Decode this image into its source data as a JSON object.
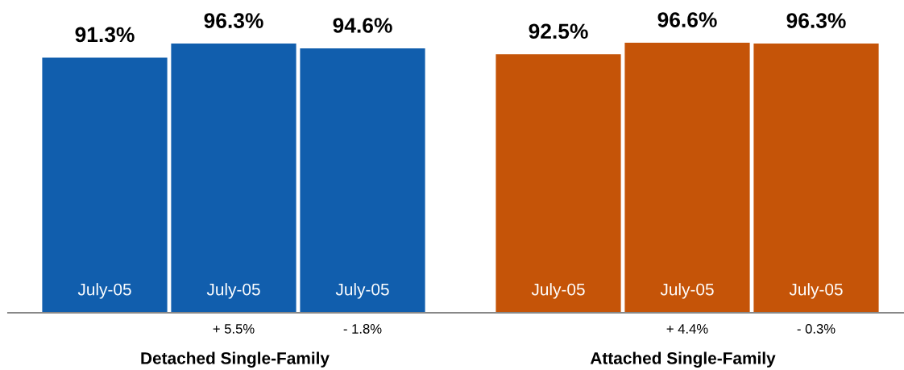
{
  "chart_data": [
    {
      "type": "bar",
      "categories": [
        "July-05",
        "July-05",
        "July-05"
      ],
      "values": [
        91.3,
        96.3,
        94.6
      ],
      "value_labels": [
        "91.3%",
        "96.3%",
        "94.6%"
      ],
      "color": "#115ead",
      "xlabel": "Detached Single-Family",
      "annotations": [
        "+ 5.5%",
        "- 1.8%"
      ],
      "grid": false,
      "legend": false
    },
    {
      "type": "bar",
      "categories": [
        "July-05",
        "July-05",
        "July-05"
      ],
      "values": [
        92.5,
        96.6,
        96.3
      ],
      "value_labels": [
        "92.5%",
        "96.6%",
        "96.3%"
      ],
      "color": "#c55408",
      "xlabel": "Attached Single-Family",
      "annotations": [
        "+ 4.4%",
        "- 0.3%"
      ],
      "grid": false,
      "legend": false
    }
  ]
}
